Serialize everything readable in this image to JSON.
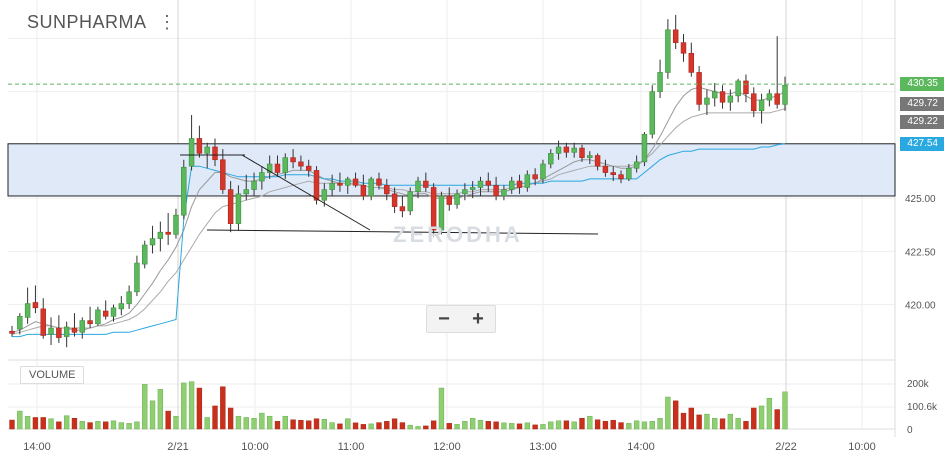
{
  "header": {
    "symbol": "SUNPHARMA",
    "menu_icon": "vertical-dots-icon"
  },
  "watermark": "ZERODHA",
  "zoom": {
    "minus": "−",
    "plus": "+"
  },
  "volume_label": "VOLUME",
  "price_tags": [
    {
      "value": "430.35",
      "color": "#5cb85c"
    },
    {
      "value": "429.72",
      "color": "#777777"
    },
    {
      "value": "429.22",
      "color": "#777777"
    },
    {
      "value": "427.54",
      "color": "#2aa8e0"
    }
  ],
  "chart_data": {
    "type": "candlestick",
    "y_axis": {
      "ticks": [
        "425.00",
        "422.50",
        "420.00"
      ],
      "ylim": [
        417.4,
        434.3
      ]
    },
    "volume_axis": {
      "ticks": [
        "200k",
        "100.6k",
        "0"
      ],
      "ylim": [
        0,
        250
      ]
    },
    "x_axis": {
      "ticks": [
        "14:00",
        "2/21",
        "10:00",
        "11:00",
        "12:00",
        "13:00",
        "14:00",
        "2/22",
        "10:00"
      ]
    },
    "horizontal_lines": [
      {
        "value": 430.35,
        "style": "dashed"
      }
    ],
    "highlight_band": [
      425.1,
      427.55
    ],
    "trendlines": [
      {
        "from": [
          0,
          426.4
        ],
        "to": [
          5,
          426.4
        ]
      },
      {
        "from": [
          5,
          426.4
        ],
        "to": [
          24,
          423.2
        ]
      },
      {
        "from": [
          3,
          423.0
        ],
        "to": [
          75,
          422.88
        ]
      }
    ],
    "candles": [
      [
        418.75,
        419.0,
        418.5,
        418.65
      ],
      [
        418.85,
        419.6,
        418.6,
        419.45
      ],
      [
        419.4,
        420.8,
        419.1,
        420.05
      ],
      [
        420.1,
        420.9,
        419.6,
        419.85
      ],
      [
        419.8,
        420.3,
        418.4,
        418.55
      ],
      [
        418.6,
        419.4,
        418.1,
        418.9
      ],
      [
        418.9,
        419.5,
        418.2,
        418.45
      ],
      [
        418.5,
        419.2,
        418.0,
        418.95
      ],
      [
        418.9,
        419.6,
        418.5,
        418.7
      ],
      [
        418.7,
        419.4,
        418.4,
        419.25
      ],
      [
        419.25,
        419.9,
        418.9,
        419.1
      ],
      [
        419.1,
        419.9,
        419.0,
        419.75
      ],
      [
        419.7,
        420.2,
        419.3,
        419.45
      ],
      [
        419.45,
        420.0,
        419.2,
        419.85
      ],
      [
        419.8,
        420.4,
        419.5,
        420.05
      ],
      [
        420.05,
        420.9,
        419.8,
        420.6
      ],
      [
        420.6,
        422.3,
        420.4,
        421.95
      ],
      [
        421.9,
        423.0,
        421.7,
        422.8
      ],
      [
        422.8,
        423.7,
        422.4,
        423.1
      ],
      [
        423.1,
        423.9,
        422.5,
        423.4
      ],
      [
        423.4,
        424.3,
        422.8,
        423.3
      ],
      [
        423.3,
        424.5,
        423.1,
        424.2
      ],
      [
        424.2,
        426.8,
        424.0,
        426.45
      ],
      [
        426.5,
        428.9,
        426.3,
        427.8
      ],
      [
        427.8,
        428.4,
        426.9,
        427.1
      ],
      [
        427.1,
        427.6,
        426.4,
        427.4
      ],
      [
        427.4,
        427.8,
        426.5,
        426.8
      ],
      [
        426.8,
        427.3,
        425.2,
        425.4
      ],
      [
        425.4,
        425.8,
        423.4,
        423.8
      ],
      [
        423.8,
        425.6,
        423.5,
        425.2
      ],
      [
        425.2,
        426.1,
        424.9,
        425.4
      ],
      [
        425.4,
        426.2,
        425.1,
        425.8
      ],
      [
        425.8,
        426.5,
        425.4,
        426.2
      ],
      [
        426.2,
        427.0,
        425.9,
        426.6
      ],
      [
        426.6,
        427.0,
        426.0,
        426.2
      ],
      [
        426.2,
        427.1,
        425.9,
        426.9
      ],
      [
        426.9,
        427.3,
        426.4,
        426.7
      ],
      [
        426.7,
        427.0,
        426.3,
        426.5
      ],
      [
        426.5,
        426.8,
        426.0,
        426.3
      ],
      [
        426.3,
        426.5,
        424.7,
        424.9
      ],
      [
        424.9,
        425.7,
        424.6,
        425.4
      ],
      [
        425.4,
        426.1,
        425.1,
        425.7
      ],
      [
        425.7,
        426.2,
        425.3,
        425.6
      ],
      [
        425.6,
        426.0,
        425.2,
        425.9
      ],
      [
        425.9,
        426.2,
        425.5,
        425.6
      ],
      [
        425.6,
        426.1,
        424.9,
        425.1
      ],
      [
        425.1,
        426.0,
        424.9,
        425.9
      ],
      [
        425.9,
        426.2,
        425.4,
        425.6
      ],
      [
        425.6,
        425.9,
        424.9,
        425.2
      ],
      [
        425.2,
        425.5,
        424.3,
        424.6
      ],
      [
        424.6,
        425.1,
        424.1,
        424.4
      ],
      [
        424.4,
        425.5,
        424.2,
        425.3
      ],
      [
        425.3,
        426.0,
        425.0,
        425.8
      ],
      [
        425.8,
        426.2,
        425.3,
        425.5
      ],
      [
        425.5,
        425.7,
        423.2,
        423.5
      ],
      [
        423.5,
        425.3,
        423.3,
        425.1
      ],
      [
        425.1,
        425.5,
        424.4,
        424.7
      ],
      [
        424.7,
        425.4,
        424.5,
        425.2
      ],
      [
        425.2,
        425.7,
        424.9,
        425.4
      ],
      [
        425.4,
        425.8,
        425.0,
        425.5
      ],
      [
        425.5,
        426.0,
        425.1,
        425.8
      ],
      [
        425.8,
        426.2,
        425.3,
        425.6
      ],
      [
        425.6,
        426.0,
        424.9,
        425.1
      ],
      [
        425.1,
        425.6,
        424.9,
        425.4
      ],
      [
        425.4,
        426.0,
        425.2,
        425.8
      ],
      [
        425.8,
        426.1,
        425.2,
        425.5
      ],
      [
        425.5,
        426.3,
        425.3,
        426.1
      ],
      [
        426.1,
        426.4,
        425.6,
        425.9
      ],
      [
        425.9,
        426.8,
        425.7,
        426.6
      ],
      [
        426.6,
        427.3,
        426.4,
        427.1
      ],
      [
        427.1,
        427.7,
        426.8,
        427.4
      ],
      [
        427.4,
        427.6,
        426.9,
        427.15
      ],
      [
        427.15,
        427.6,
        426.9,
        427.35
      ],
      [
        427.35,
        427.5,
        426.7,
        426.9
      ],
      [
        426.9,
        427.2,
        426.6,
        427.0
      ],
      [
        427.0,
        427.1,
        426.3,
        426.5
      ],
      [
        426.5,
        426.8,
        426.0,
        426.2
      ],
      [
        426.2,
        426.5,
        425.8,
        426.1
      ],
      [
        426.1,
        426.3,
        425.7,
        425.9
      ],
      [
        425.9,
        426.6,
        425.8,
        426.4
      ],
      [
        426.4,
        427.0,
        426.2,
        426.7
      ],
      [
        426.7,
        428.1,
        426.5,
        428.0
      ],
      [
        428.0,
        430.3,
        427.8,
        430.0
      ],
      [
        430.0,
        431.5,
        429.7,
        430.9
      ],
      [
        430.9,
        433.4,
        430.6,
        432.9
      ],
      [
        432.9,
        433.6,
        432.0,
        432.3
      ],
      [
        432.3,
        432.7,
        431.4,
        431.8
      ],
      [
        431.8,
        432.3,
        430.7,
        430.9
      ],
      [
        430.9,
        431.2,
        429.1,
        429.4
      ],
      [
        429.4,
        430.1,
        428.9,
        429.7
      ],
      [
        429.7,
        430.4,
        429.3,
        430.0
      ],
      [
        430.0,
        430.3,
        429.2,
        429.5
      ],
      [
        429.5,
        430.1,
        429.1,
        429.8
      ],
      [
        429.8,
        430.6,
        429.5,
        430.5
      ],
      [
        430.5,
        430.8,
        429.5,
        429.9
      ],
      [
        429.9,
        430.2,
        428.8,
        429.1
      ],
      [
        429.1,
        429.9,
        428.5,
        429.6
      ],
      [
        429.6,
        430.1,
        429.3,
        429.9
      ],
      [
        429.9,
        432.6,
        429.2,
        429.4
      ],
      [
        429.4,
        430.7,
        429.1,
        430.3
      ]
    ],
    "volumes": [
      35,
      70,
      50,
      45,
      45,
      40,
      28,
      52,
      42,
      30,
      25,
      30,
      28,
      32,
      25,
      22,
      28,
      175,
      110,
      155,
      70,
      50,
      180,
      185,
      160,
      45,
      90,
      165,
      82,
      50,
      45,
      42,
      62,
      50,
      30,
      50,
      36,
      34,
      32,
      40,
      38,
      25,
      20,
      40,
      24,
      18,
      20,
      25,
      30,
      40,
      25,
      15,
      10,
      12,
      32,
      160,
      22,
      18,
      30,
      42,
      34,
      30,
      28,
      24,
      22,
      20,
      24,
      16,
      18,
      28,
      32,
      32,
      28,
      42,
      50,
      36,
      30,
      34,
      25,
      22,
      32,
      28,
      30,
      42,
      125,
      110,
      62,
      82,
      55,
      58,
      42,
      40,
      58,
      42,
      30,
      82,
      90,
      120,
      76,
      145
    ],
    "moving_averages": [
      {
        "color": "#999999",
        "values": [
          418.7,
          418.8,
          419.0,
          419.2,
          419.1,
          419.0,
          418.9,
          418.9,
          418.8,
          418.8,
          418.9,
          419.0,
          419.1,
          419.3,
          419.4,
          419.6,
          420.0,
          420.5,
          421.0,
          421.6,
          422.1,
          422.7,
          423.5,
          424.6,
          425.4,
          425.8,
          426.2,
          426.2,
          426.0,
          425.9,
          425.8,
          425.8,
          425.9,
          426.0,
          426.1,
          426.2,
          426.3,
          426.3,
          426.3,
          426.1,
          425.9,
          425.8,
          425.7,
          425.7,
          425.7,
          425.6,
          425.5,
          425.5,
          425.4,
          425.3,
          425.2,
          425.1,
          425.2,
          425.2,
          425.0,
          425.0,
          425.0,
          425.0,
          425.1,
          425.2,
          425.3,
          425.3,
          425.3,
          425.3,
          425.4,
          425.5,
          425.6,
          425.7,
          425.9,
          426.1,
          426.3,
          426.5,
          426.7,
          426.8,
          426.8,
          426.7,
          426.6,
          426.5,
          426.4,
          426.4,
          426.5,
          426.8,
          427.3,
          427.9,
          428.6,
          429.3,
          429.8,
          430.1,
          430.2,
          430.1,
          430.0,
          429.9,
          429.9,
          430.0,
          429.8,
          429.6,
          429.6,
          429.7,
          429.8,
          430.0
        ]
      },
      {
        "color": "#aaaaaa",
        "values": [
          418.6,
          418.7,
          418.8,
          418.9,
          419.0,
          419.0,
          418.9,
          418.9,
          418.9,
          418.9,
          418.9,
          419.0,
          419.0,
          419.1,
          419.2,
          419.3,
          419.5,
          419.8,
          420.2,
          420.6,
          421.1,
          421.5,
          422.1,
          422.7,
          423.3,
          423.8,
          424.3,
          424.6,
          424.7,
          424.8,
          424.9,
          425.0,
          425.1,
          425.3,
          425.4,
          425.5,
          425.6,
          425.7,
          425.8,
          425.7,
          425.7,
          425.7,
          425.7,
          425.7,
          425.6,
          425.6,
          425.5,
          425.5,
          425.5,
          425.4,
          425.4,
          425.3,
          425.3,
          425.3,
          425.2,
          425.2,
          425.2,
          425.2,
          425.3,
          425.3,
          425.4,
          425.4,
          425.4,
          425.4,
          425.5,
          425.5,
          425.6,
          425.7,
          425.8,
          425.9,
          426.1,
          426.2,
          426.3,
          426.4,
          426.5,
          426.5,
          426.5,
          426.5,
          426.5,
          426.5,
          426.6,
          426.8,
          427.1,
          427.5,
          427.9,
          428.3,
          428.6,
          428.8,
          428.9,
          429.0,
          429.0,
          429.0,
          429.0,
          429.0,
          429.0,
          429.0,
          429.0,
          429.0,
          429.1,
          429.2
        ]
      },
      {
        "color": "#2aa8e0",
        "values": [
          418.5,
          418.5,
          418.6,
          418.6,
          418.6,
          418.6,
          418.6,
          418.6,
          418.6,
          418.6,
          418.6,
          418.6,
          418.6,
          418.7,
          418.7,
          418.7,
          418.8,
          418.9,
          419.0,
          419.1,
          419.2,
          419.3,
          424.0,
          426.5,
          426.5,
          426.4,
          426.3,
          426.2,
          426.1,
          426.0,
          426.0,
          426.0,
          426.0,
          426.0,
          426.0,
          426.1,
          426.1,
          426.1,
          426.1,
          426.0,
          425.9,
          425.9,
          425.8,
          425.8,
          425.8,
          425.7,
          425.7,
          425.7,
          425.6,
          425.6,
          425.6,
          425.6,
          425.6,
          425.6,
          425.6,
          425.6,
          425.6,
          425.6,
          425.6,
          425.6,
          425.6,
          425.6,
          425.6,
          425.6,
          425.6,
          425.7,
          425.7,
          425.7,
          425.7,
          425.8,
          425.8,
          425.8,
          425.8,
          425.8,
          425.9,
          425.9,
          425.9,
          425.9,
          425.9,
          425.9,
          425.9,
          426.2,
          426.5,
          426.8,
          427.0,
          427.1,
          427.2,
          427.2,
          427.3,
          427.3,
          427.3,
          427.3,
          427.3,
          427.3,
          427.3,
          427.3,
          427.4,
          427.4,
          427.5,
          427.55
        ]
      }
    ]
  }
}
